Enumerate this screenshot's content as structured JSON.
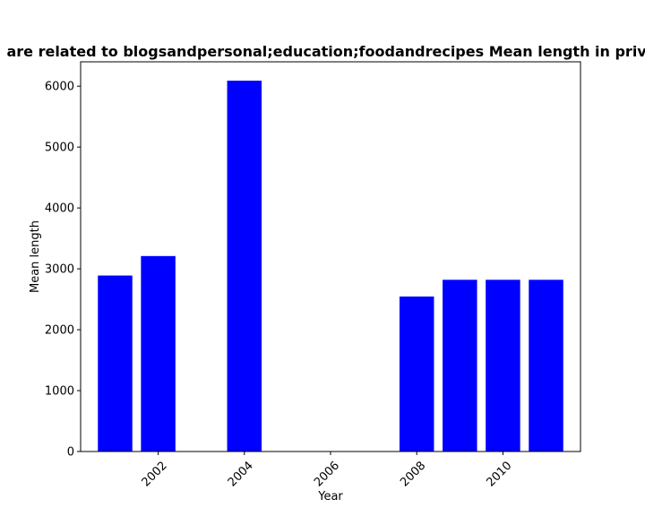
{
  "chart_data": {
    "type": "bar",
    "title": "are related to blogsandpersonal;education;foodandrecipes Mean length in priva",
    "xlabel": "Year",
    "ylabel": "Mean length",
    "x": [
      2001,
      2002,
      2004,
      2008,
      2009,
      2010,
      2011
    ],
    "values": [
      2890,
      3210,
      6090,
      2545,
      2820,
      2820,
      2820
    ],
    "xlim": [
      2000.2,
      2011.8
    ],
    "ylim": [
      0,
      6400
    ],
    "xticks": [
      2002,
      2004,
      2006,
      2008,
      2010
    ],
    "yticks": [
      0,
      1000,
      2000,
      3000,
      4000,
      5000,
      6000
    ],
    "bar_width": 0.8,
    "bar_color": "#0000ff",
    "grid": false,
    "xtick_rotation": 45
  }
}
